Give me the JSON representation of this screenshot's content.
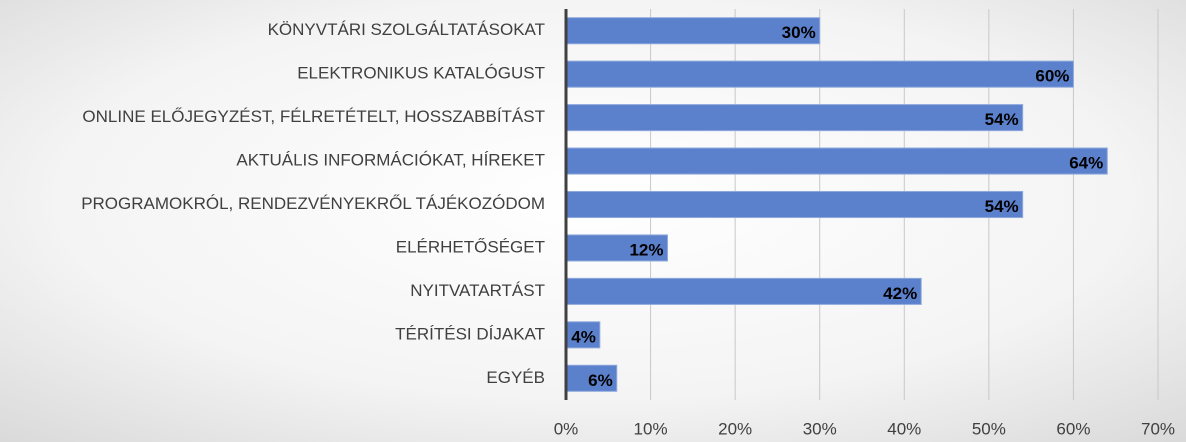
{
  "chart_data": {
    "type": "barh",
    "categories": [
      "KÖNYVTÁRI SZOLGÁLTATÁSOKAT",
      "ELEKTRONIKUS KATALÓGUST",
      "ONLINE ELŐJEGYZÉST, FÉLRETÉTELT, HOSSZABBÍTÁST",
      "AKTUÁLIS INFORMÁCIÓKAT, HÍREKET",
      "PROGRAMOKRÓL, RENDEZVÉNYEKRŐL TÁJÉKOZÓDOM",
      "ELÉRHETŐSÉGET",
      "NYITVATARTÁST",
      "TÉRÍTÉSI DÍJAKAT",
      "EGYÉB"
    ],
    "values": [
      30,
      60,
      54,
      64,
      54,
      12,
      42,
      4,
      6
    ],
    "value_labels": [
      "30%",
      "60%",
      "54%",
      "64%",
      "54%",
      "12%",
      "42%",
      "4%",
      "6%"
    ],
    "color": "#5b80cc",
    "xlim": [
      0,
      70
    ],
    "xticks": [
      {
        "value": 0,
        "label": "0%"
      },
      {
        "value": 10,
        "label": "10%"
      },
      {
        "value": 20,
        "label": "20%"
      },
      {
        "value": 30,
        "label": "30%"
      },
      {
        "value": 40,
        "label": "40%"
      },
      {
        "value": 50,
        "label": "50%"
      },
      {
        "value": 60,
        "label": "60%"
      },
      {
        "value": 70,
        "label": "70%"
      }
    ],
    "grid": true
  }
}
